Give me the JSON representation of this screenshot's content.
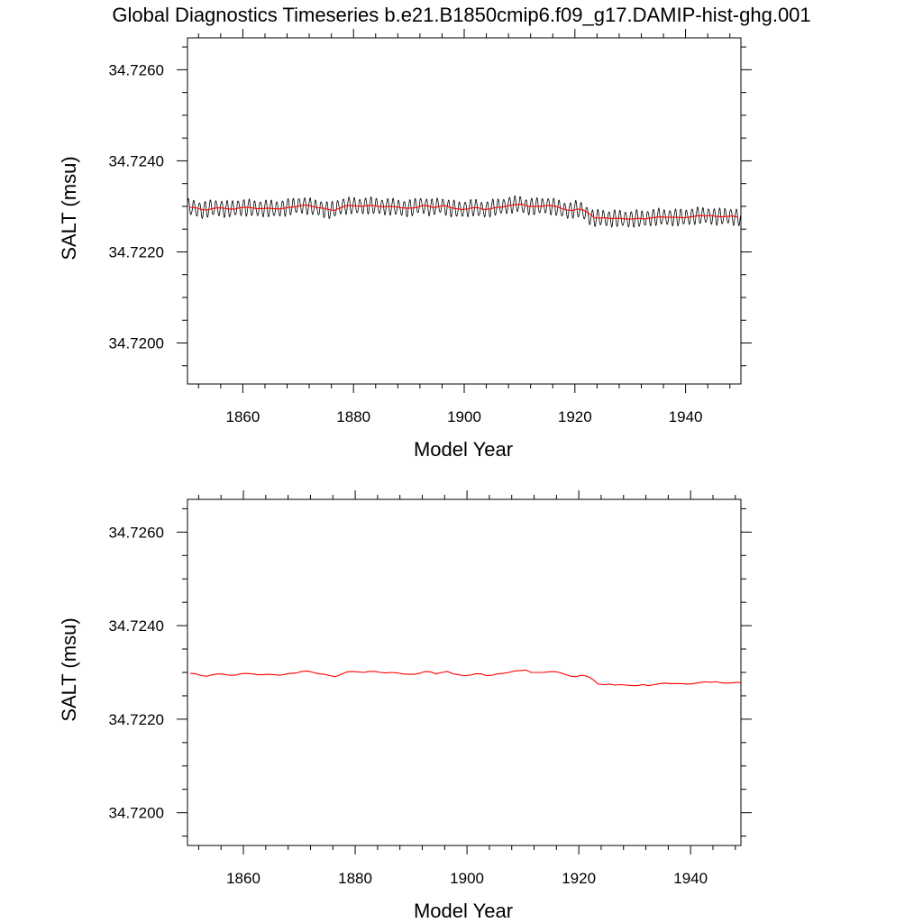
{
  "title": "Global Diagnostics Timeseries b.e21.B1850cmip6.f09_g17.DAMIP-hist-ghg.001",
  "colors": {
    "monthly": "#000000",
    "smoothed": "#ff0000",
    "frame": "#000000"
  },
  "chart_data": [
    {
      "type": "line",
      "xlabel": "Model Year",
      "ylabel": "SALT (msu)",
      "xlim": [
        1850,
        1950
      ],
      "ylim": [
        34.7191,
        34.7267
      ],
      "xticks": [
        1860,
        1880,
        1900,
        1920,
        1940
      ],
      "xtick_labels": [
        "1860",
        "1880",
        "1900",
        "1920",
        "1940"
      ],
      "yticks": [
        34.72,
        34.722,
        34.724,
        34.726
      ],
      "ytick_labels": [
        "34.7200",
        "34.7220",
        "34.7240",
        "34.7260"
      ],
      "grid": false,
      "series": [
        {
          "color": "#000000",
          "style": "monthly oscillating values",
          "x": [
            1850,
            1851,
            1852,
            1853,
            1854,
            1855,
            1856,
            1857,
            1858,
            1859,
            1860,
            1861,
            1862,
            1863,
            1864,
            1865,
            1866,
            1867,
            1868,
            1869,
            1870,
            1871,
            1872,
            1873,
            1874,
            1875,
            1876,
            1877,
            1878,
            1879,
            1880,
            1881,
            1882,
            1883,
            1884,
            1885,
            1886,
            1887,
            1888,
            1889,
            1890,
            1891,
            1892,
            1893,
            1894,
            1895,
            1896,
            1897,
            1898,
            1899,
            1900,
            1901,
            1902,
            1903,
            1904,
            1905,
            1906,
            1907,
            1908,
            1909,
            1910,
            1911,
            1912,
            1913,
            1914,
            1915,
            1916,
            1917,
            1918,
            1919,
            1920,
            1921,
            1922,
            1923,
            1924,
            1925,
            1926,
            1927,
            1928,
            1929,
            1930,
            1931,
            1932,
            1933,
            1934,
            1935,
            1936,
            1937,
            1938,
            1939,
            1940,
            1941,
            1942,
            1943,
            1944,
            1945,
            1946,
            1947,
            1948,
            1949
          ],
          "y_annual_mean": [
            34.72298,
            34.72297,
            34.72293,
            34.72292,
            34.72295,
            34.72297,
            34.72296,
            34.72294,
            34.72294,
            34.72297,
            34.72298,
            34.72297,
            34.72295,
            34.72295,
            34.72296,
            34.72295,
            34.72294,
            34.72296,
            34.72298,
            34.72299,
            34.72302,
            34.72303,
            34.723,
            34.72297,
            34.72296,
            34.72293,
            34.72291,
            34.72296,
            34.72301,
            34.72302,
            34.72301,
            34.723,
            34.72302,
            34.72302,
            34.723,
            34.72299,
            34.723,
            34.72299,
            34.72297,
            34.72296,
            34.72296,
            34.72298,
            34.72302,
            34.72301,
            34.72297,
            34.723,
            34.72302,
            34.72297,
            34.72295,
            34.72293,
            34.72294,
            34.72297,
            34.72297,
            34.72293,
            34.72294,
            34.72297,
            34.72298,
            34.723,
            34.72303,
            34.72304,
            34.72305,
            34.723,
            34.723,
            34.723,
            34.72301,
            34.72302,
            34.723,
            34.72296,
            34.72292,
            34.72291,
            34.72294,
            34.72292,
            34.72285,
            34.72275,
            34.72274,
            34.72275,
            34.72273,
            34.72274,
            34.72273,
            34.72272,
            34.72272,
            34.72274,
            34.72272,
            34.72274,
            34.72276,
            34.72277,
            34.72276,
            34.72276,
            34.72276,
            34.72275,
            34.72276,
            34.72278,
            34.7228,
            34.72279,
            34.7228,
            34.72278,
            34.72277,
            34.72278,
            34.72279,
            34.72276
          ],
          "seasonal_amplitude": 0.00017
        },
        {
          "color": "#ff0000",
          "style": "smoothed",
          "x": [
            1850,
            1851,
            1852,
            1853,
            1854,
            1855,
            1856,
            1857,
            1858,
            1859,
            1860,
            1861,
            1862,
            1863,
            1864,
            1865,
            1866,
            1867,
            1868,
            1869,
            1870,
            1871,
            1872,
            1873,
            1874,
            1875,
            1876,
            1877,
            1878,
            1879,
            1880,
            1881,
            1882,
            1883,
            1884,
            1885,
            1886,
            1887,
            1888,
            1889,
            1890,
            1891,
            1892,
            1893,
            1894,
            1895,
            1896,
            1897,
            1898,
            1899,
            1900,
            1901,
            1902,
            1903,
            1904,
            1905,
            1906,
            1907,
            1908,
            1909,
            1910,
            1911,
            1912,
            1913,
            1914,
            1915,
            1916,
            1917,
            1918,
            1919,
            1920,
            1921,
            1922,
            1923,
            1924,
            1925,
            1926,
            1927,
            1928,
            1929,
            1930,
            1931,
            1932,
            1933,
            1934,
            1935,
            1936,
            1937,
            1938,
            1939,
            1940,
            1941,
            1942,
            1943,
            1944,
            1945,
            1946,
            1947,
            1948,
            1949
          ],
          "y": [
            34.72298,
            34.72297,
            34.72293,
            34.72292,
            34.72295,
            34.72297,
            34.72296,
            34.72294,
            34.72294,
            34.72297,
            34.72298,
            34.72297,
            34.72295,
            34.72295,
            34.72296,
            34.72295,
            34.72294,
            34.72296,
            34.72298,
            34.72299,
            34.72302,
            34.72303,
            34.723,
            34.72297,
            34.72296,
            34.72293,
            34.72291,
            34.72296,
            34.72301,
            34.72302,
            34.72301,
            34.723,
            34.72302,
            34.72302,
            34.723,
            34.72299,
            34.723,
            34.72299,
            34.72297,
            34.72296,
            34.72296,
            34.72298,
            34.72302,
            34.72301,
            34.72297,
            34.723,
            34.72302,
            34.72297,
            34.72295,
            34.72293,
            34.72294,
            34.72297,
            34.72297,
            34.72293,
            34.72294,
            34.72297,
            34.72298,
            34.723,
            34.72303,
            34.72304,
            34.72305,
            34.723,
            34.723,
            34.723,
            34.72301,
            34.72302,
            34.723,
            34.72296,
            34.72292,
            34.72291,
            34.72294,
            34.72292,
            34.72285,
            34.72275,
            34.72274,
            34.72275,
            34.72273,
            34.72274,
            34.72273,
            34.72272,
            34.72272,
            34.72274,
            34.72272,
            34.72274,
            34.72276,
            34.72277,
            34.72276,
            34.72276,
            34.72276,
            34.72275,
            34.72276,
            34.72278,
            34.7228,
            34.72279,
            34.7228,
            34.72278,
            34.72277,
            34.72278,
            34.72279,
            34.72276
          ]
        }
      ]
    },
    {
      "type": "line",
      "xlabel": "Model Year",
      "ylabel": "SALT (msu)",
      "xlim": [
        1850,
        1949
      ],
      "ylim": [
        34.7193,
        34.7267
      ],
      "xticks": [
        1860,
        1880,
        1900,
        1920,
        1940
      ],
      "xtick_labels": [
        "1860",
        "1880",
        "1900",
        "1920",
        "1940"
      ],
      "yticks": [
        34.72,
        34.722,
        34.724,
        34.726
      ],
      "ytick_labels": [
        "34.7200",
        "34.7220",
        "34.7240",
        "34.7260"
      ],
      "grid": false,
      "series": [
        {
          "color": "#ff0000",
          "style": "smoothed",
          "x": [
            1850,
            1851,
            1852,
            1853,
            1854,
            1855,
            1856,
            1857,
            1858,
            1859,
            1860,
            1861,
            1862,
            1863,
            1864,
            1865,
            1866,
            1867,
            1868,
            1869,
            1870,
            1871,
            1872,
            1873,
            1874,
            1875,
            1876,
            1877,
            1878,
            1879,
            1880,
            1881,
            1882,
            1883,
            1884,
            1885,
            1886,
            1887,
            1888,
            1889,
            1890,
            1891,
            1892,
            1893,
            1894,
            1895,
            1896,
            1897,
            1898,
            1899,
            1900,
            1901,
            1902,
            1903,
            1904,
            1905,
            1906,
            1907,
            1908,
            1909,
            1910,
            1911,
            1912,
            1913,
            1914,
            1915,
            1916,
            1917,
            1918,
            1919,
            1920,
            1921,
            1922,
            1923,
            1924,
            1925,
            1926,
            1927,
            1928,
            1929,
            1930,
            1931,
            1932,
            1933,
            1934,
            1935,
            1936,
            1937,
            1938,
            1939,
            1940,
            1941,
            1942,
            1943,
            1944,
            1945,
            1946,
            1947,
            1948,
            1949
          ],
          "y": [
            34.72298,
            34.72297,
            34.72293,
            34.72292,
            34.72295,
            34.72297,
            34.72296,
            34.72294,
            34.72294,
            34.72297,
            34.72298,
            34.72297,
            34.72295,
            34.72295,
            34.72296,
            34.72295,
            34.72294,
            34.72296,
            34.72298,
            34.72299,
            34.72302,
            34.72303,
            34.723,
            34.72297,
            34.72296,
            34.72293,
            34.72291,
            34.72296,
            34.72301,
            34.72302,
            34.72301,
            34.723,
            34.72302,
            34.72302,
            34.723,
            34.72299,
            34.723,
            34.72299,
            34.72297,
            34.72296,
            34.72296,
            34.72298,
            34.72302,
            34.72301,
            34.72297,
            34.723,
            34.72302,
            34.72297,
            34.72295,
            34.72293,
            34.72294,
            34.72297,
            34.72297,
            34.72293,
            34.72294,
            34.72297,
            34.72298,
            34.723,
            34.72303,
            34.72304,
            34.72305,
            34.723,
            34.723,
            34.723,
            34.72301,
            34.72302,
            34.723,
            34.72296,
            34.72292,
            34.72291,
            34.72294,
            34.72292,
            34.72285,
            34.72275,
            34.72274,
            34.72275,
            34.72273,
            34.72274,
            34.72273,
            34.72272,
            34.72272,
            34.72274,
            34.72272,
            34.72274,
            34.72276,
            34.72277,
            34.72276,
            34.72276,
            34.72276,
            34.72275,
            34.72276,
            34.72278,
            34.7228,
            34.72279,
            34.7228,
            34.72278,
            34.72277,
            34.72278,
            34.72279,
            34.72276
          ]
        }
      ]
    }
  ]
}
